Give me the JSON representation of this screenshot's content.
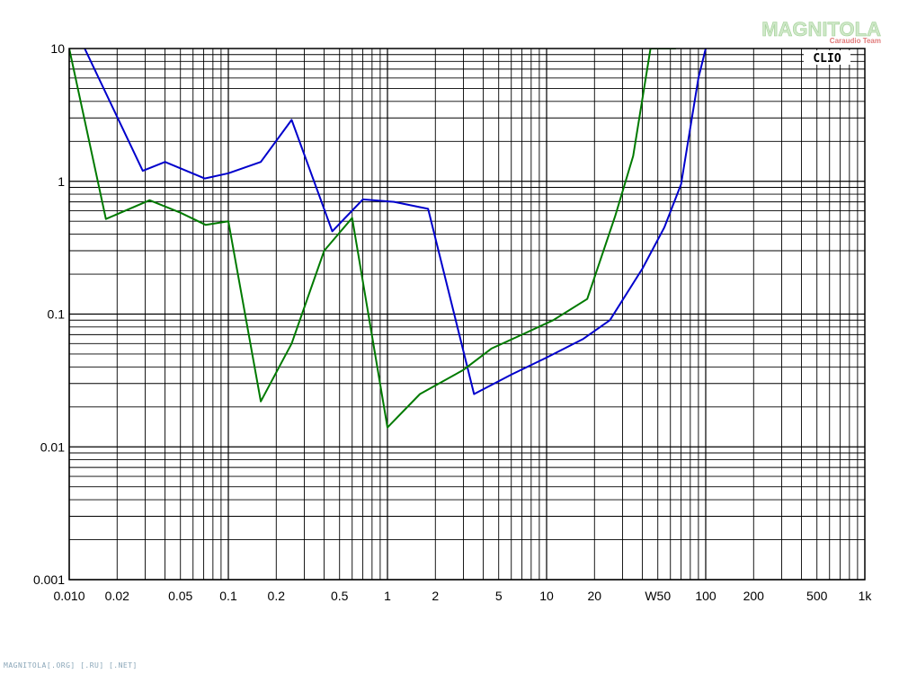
{
  "chart_data": {
    "type": "line",
    "x_scale": "log",
    "y_scale": "log",
    "xlim": [
      0.01,
      1000
    ],
    "ylim": [
      0.001,
      10
    ],
    "grid": true,
    "x_tick_labels": [
      "0.010",
      "0.02",
      "0.05",
      "0.1",
      "0.2",
      "0.5",
      "1",
      "2",
      "5",
      "10",
      "20",
      "W50",
      "100",
      "200",
      "500",
      "1k"
    ],
    "y_tick_labels": [
      "10",
      "1",
      "0.1",
      "0.01",
      "0.001"
    ],
    "series": [
      {
        "color": "#0000cc",
        "x": [
          0.0125,
          0.029,
          0.04,
          0.071,
          0.1,
          0.16,
          0.25,
          0.45,
          0.7,
          1.1,
          1.8,
          3.5,
          6.0,
          10.0,
          17.0,
          25.0,
          40.0,
          55.0,
          70.0,
          90.0,
          100.0
        ],
        "y": [
          10.0,
          1.2,
          1.4,
          1.05,
          1.15,
          1.4,
          2.9,
          0.42,
          0.73,
          0.7,
          0.62,
          0.025,
          0.035,
          0.047,
          0.065,
          0.09,
          0.22,
          0.45,
          0.95,
          6.0,
          10.0
        ]
      },
      {
        "color": "#007a00",
        "x": [
          0.01,
          0.017,
          0.032,
          0.05,
          0.072,
          0.1,
          0.16,
          0.25,
          0.4,
          0.6,
          1.0,
          1.6,
          3.0,
          4.5,
          7.0,
          11.0,
          18.0,
          27.0,
          35.0,
          45.0,
          55.0,
          65.0
        ],
        "y": [
          10.0,
          0.52,
          0.72,
          0.58,
          0.47,
          0.5,
          0.022,
          0.06,
          0.3,
          0.53,
          0.014,
          0.025,
          0.038,
          0.055,
          0.07,
          0.09,
          0.13,
          0.55,
          1.55,
          10.0,
          10.0,
          10.0
        ]
      }
    ]
  },
  "badge": {
    "text": "CLIO"
  },
  "logo": {
    "name": "MAGNITOLA",
    "sub": "Caraudio Team"
  },
  "footer": {
    "text": "MAGNITOLA[.ORG] [.RU] [.NET]"
  }
}
